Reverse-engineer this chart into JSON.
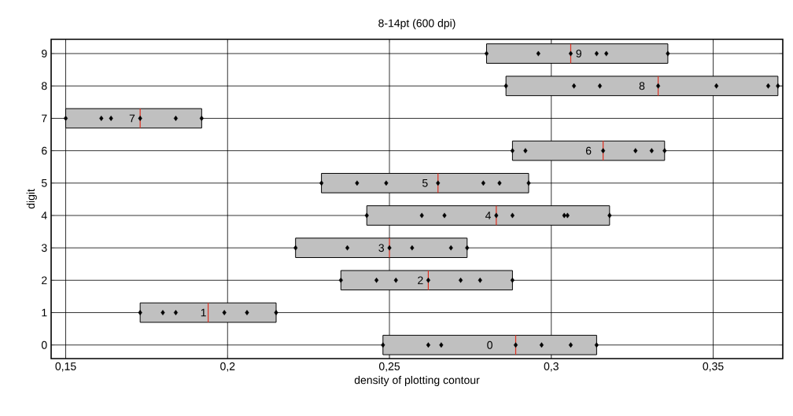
{
  "chart_data": {
    "type": "box",
    "title": "8-14pt (600 dpi)",
    "xlabel": "density of plotting contour",
    "ylabel": "digit",
    "orientation": "horizontal",
    "color": "#c0c0c0",
    "categories": [
      "9",
      "8",
      "7",
      "6",
      "5",
      "4",
      "3",
      "2",
      "1",
      "0"
    ],
    "boxes": [
      {
        "low": 0.28,
        "q1": 0.28,
        "median": 0.306,
        "q3": 0.336,
        "high": 0.336
      },
      {
        "low": 0.286,
        "q1": 0.286,
        "median": 0.333,
        "q3": 0.37,
        "high": 0.37
      },
      {
        "low": 0.15,
        "q1": 0.15,
        "median": 0.173,
        "q3": 0.192,
        "high": 0.192
      },
      {
        "low": 0.288,
        "q1": 0.288,
        "median": 0.316,
        "q3": 0.335,
        "high": 0.335
      },
      {
        "low": 0.229,
        "q1": 0.229,
        "median": 0.265,
        "q3": 0.293,
        "high": 0.293
      },
      {
        "low": 0.243,
        "q1": 0.243,
        "median": 0.283,
        "q3": 0.318,
        "high": 0.318
      },
      {
        "low": 0.221,
        "q1": 0.221,
        "median": 0.25,
        "q3": 0.274,
        "high": 0.274
      },
      {
        "low": 0.235,
        "q1": 0.235,
        "median": 0.262,
        "q3": 0.288,
        "high": 0.288
      },
      {
        "low": 0.173,
        "q1": 0.173,
        "median": 0.194,
        "q3": 0.215,
        "high": 0.215
      },
      {
        "low": 0.248,
        "q1": 0.248,
        "median": 0.289,
        "q3": 0.314,
        "high": 0.314
      }
    ],
    "series": [
      {
        "type": "scatter",
        "color": "#000000",
        "x": [
          "9",
          "9",
          "9",
          "9",
          "9",
          "9",
          "8",
          "8",
          "8",
          "8",
          "8",
          "8",
          "8",
          "7",
          "7",
          "7",
          "7",
          "7",
          "7",
          "6",
          "6",
          "6",
          "6",
          "6",
          "6",
          "5",
          "5",
          "5",
          "5",
          "5",
          "5",
          "5",
          "4",
          "4",
          "4",
          "4",
          "4",
          "4",
          "4",
          "4",
          "3",
          "3",
          "3",
          "3",
          "3",
          "3",
          "2",
          "2",
          "2",
          "2",
          "2",
          "2",
          "2",
          "1",
          "1",
          "1",
          "1",
          "1",
          "1",
          "0",
          "0",
          "0",
          "0",
          "0",
          "0",
          "0"
        ],
        "values": [
          0.28,
          0.296,
          0.306,
          0.314,
          0.317,
          0.336,
          0.286,
          0.307,
          0.315,
          0.333,
          0.351,
          0.367,
          0.37,
          0.15,
          0.161,
          0.164,
          0.173,
          0.184,
          0.192,
          0.288,
          0.292,
          0.316,
          0.326,
          0.331,
          0.335,
          0.229,
          0.24,
          0.249,
          0.265,
          0.279,
          0.284,
          0.293,
          0.243,
          0.26,
          0.267,
          0.283,
          0.288,
          0.304,
          0.305,
          0.318,
          0.221,
          0.237,
          0.25,
          0.257,
          0.269,
          0.274,
          0.235,
          0.246,
          0.252,
          0.262,
          0.272,
          0.278,
          0.288,
          0.173,
          0.18,
          0.184,
          0.199,
          0.206,
          0.215,
          0.248,
          0.262,
          0.266,
          0.289,
          0.297,
          0.306,
          0.314
        ]
      }
    ],
    "marker": "diamond",
    "grid": true,
    "xlim": [
      0.1455,
      0.3715
    ],
    "xticks": [
      {
        "value": 0.15,
        "label": "0,15"
      },
      {
        "value": 0.2,
        "label": "0,2"
      },
      {
        "value": 0.25,
        "label": "0,25"
      },
      {
        "value": 0.3,
        "label": "0,3"
      },
      {
        "value": 0.35,
        "label": "0,35"
      }
    ]
  }
}
